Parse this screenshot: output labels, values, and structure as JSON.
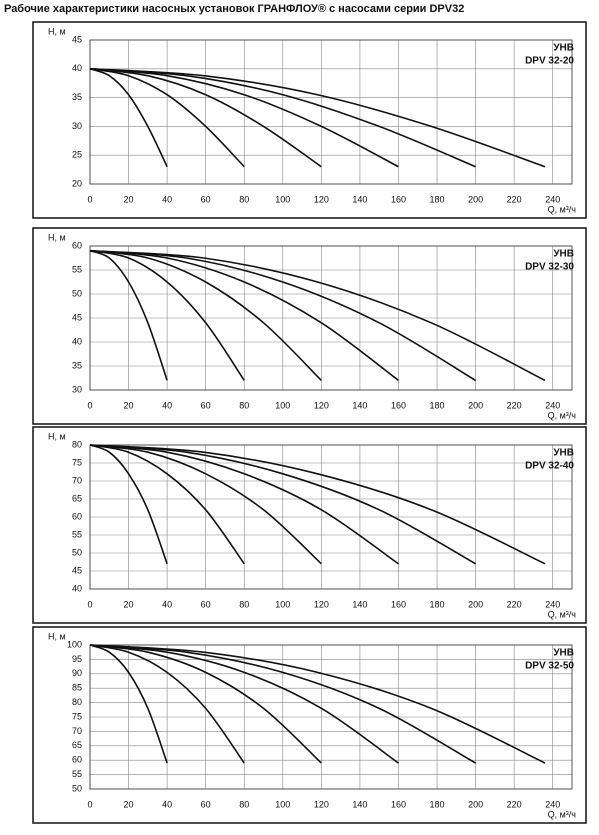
{
  "title": "Рабочие характеристики насосных установок  ГРАНФЛОУ® с насосами серии DPV32",
  "chart_data": [
    {
      "type": "line",
      "labels": [
        "УНВ",
        "DPV 32-20"
      ],
      "y_label": "Н, м",
      "x_label": "Q, м³/ч",
      "xlim": [
        0,
        250
      ],
      "xticks": [
        0,
        20,
        40,
        60,
        80,
        100,
        120,
        140,
        160,
        180,
        200,
        220,
        240
      ],
      "ylim": [
        20,
        45
      ],
      "yticks": [
        20,
        25,
        30,
        35,
        40,
        45
      ],
      "grid": true,
      "series": [
        {
          "color": "#111111",
          "x": [
            0,
            10,
            20,
            30,
            40
          ],
          "values": [
            40,
            38.8,
            35.5,
            30,
            23
          ]
        },
        {
          "color": "#111111",
          "x": [
            0,
            20,
            40,
            60,
            80
          ],
          "values": [
            40,
            38.8,
            35.5,
            30,
            23
          ]
        },
        {
          "color": "#111111",
          "x": [
            0,
            30,
            60,
            90,
            120
          ],
          "values": [
            40,
            38.8,
            35.5,
            30,
            23
          ]
        },
        {
          "color": "#111111",
          "x": [
            0,
            40,
            80,
            120,
            160
          ],
          "values": [
            40,
            38.8,
            35.5,
            30,
            23
          ]
        },
        {
          "color": "#111111",
          "x": [
            0,
            50,
            100,
            150,
            200
          ],
          "values": [
            40,
            38.8,
            35.5,
            30,
            23
          ]
        },
        {
          "color": "#111111",
          "x": [
            0,
            59,
            118,
            177,
            236
          ],
          "values": [
            40,
            38.8,
            35.5,
            30,
            23
          ]
        }
      ]
    },
    {
      "type": "line",
      "labels": [
        "УНВ",
        "DPV 32-30"
      ],
      "y_label": "Н, м",
      "x_label": "Q, м³/ч",
      "xlim": [
        0,
        250
      ],
      "xticks": [
        0,
        20,
        40,
        60,
        80,
        100,
        120,
        140,
        160,
        180,
        200,
        220,
        240
      ],
      "ylim": [
        30,
        60
      ],
      "yticks": [
        30,
        35,
        40,
        45,
        50,
        55,
        60
      ],
      "grid": true,
      "series": [
        {
          "color": "#111111",
          "x": [
            0,
            10,
            20,
            30,
            40
          ],
          "values": [
            59,
            57.5,
            52.5,
            44,
            32
          ]
        },
        {
          "color": "#111111",
          "x": [
            0,
            20,
            40,
            60,
            80
          ],
          "values": [
            59,
            57.5,
            52.5,
            44,
            32
          ]
        },
        {
          "color": "#111111",
          "x": [
            0,
            30,
            60,
            90,
            120
          ],
          "values": [
            59,
            57.5,
            52.5,
            44,
            32
          ]
        },
        {
          "color": "#111111",
          "x": [
            0,
            40,
            80,
            120,
            160
          ],
          "values": [
            59,
            57.5,
            52.5,
            44,
            32
          ]
        },
        {
          "color": "#111111",
          "x": [
            0,
            50,
            100,
            150,
            200
          ],
          "values": [
            59,
            57.5,
            52.5,
            44,
            32
          ]
        },
        {
          "color": "#111111",
          "x": [
            0,
            59,
            118,
            177,
            236
          ],
          "values": [
            59,
            57.5,
            52.5,
            44,
            32
          ]
        }
      ]
    },
    {
      "type": "line",
      "labels": [
        "УНВ",
        "DPV 32-40"
      ],
      "y_label": "Н, м",
      "x_label": "Q, м³/ч",
      "xlim": [
        0,
        250
      ],
      "xticks": [
        0,
        20,
        40,
        60,
        80,
        100,
        120,
        140,
        160,
        180,
        200,
        220,
        240
      ],
      "ylim": [
        40,
        80
      ],
      "yticks": [
        40,
        45,
        50,
        55,
        60,
        65,
        70,
        75,
        80
      ],
      "grid": true,
      "series": [
        {
          "color": "#111111",
          "x": [
            0,
            10,
            20,
            30,
            40
          ],
          "values": [
            80,
            78,
            72,
            62,
            47
          ]
        },
        {
          "color": "#111111",
          "x": [
            0,
            20,
            40,
            60,
            80
          ],
          "values": [
            80,
            78,
            72,
            62,
            47
          ]
        },
        {
          "color": "#111111",
          "x": [
            0,
            30,
            60,
            90,
            120
          ],
          "values": [
            80,
            78,
            72,
            62,
            47
          ]
        },
        {
          "color": "#111111",
          "x": [
            0,
            40,
            80,
            120,
            160
          ],
          "values": [
            80,
            78,
            72,
            62,
            47
          ]
        },
        {
          "color": "#111111",
          "x": [
            0,
            50,
            100,
            150,
            200
          ],
          "values": [
            80,
            78,
            72,
            62,
            47
          ]
        },
        {
          "color": "#111111",
          "x": [
            0,
            59,
            118,
            177,
            236
          ],
          "values": [
            80,
            78,
            72,
            62,
            47
          ]
        }
      ]
    },
    {
      "type": "line",
      "labels": [
        "УНВ",
        "DPV 32-50"
      ],
      "y_label": "Н, м",
      "x_label": "Q, м³/ч",
      "xlim": [
        0,
        250
      ],
      "xticks": [
        0,
        20,
        40,
        60,
        80,
        100,
        120,
        140,
        160,
        180,
        200,
        220,
        240
      ],
      "ylim": [
        50,
        100
      ],
      "yticks": [
        50,
        55,
        60,
        65,
        70,
        75,
        80,
        85,
        90,
        95,
        100
      ],
      "grid": true,
      "series": [
        {
          "color": "#111111",
          "x": [
            0,
            10,
            20,
            30,
            40
          ],
          "values": [
            100,
            97.5,
            90.5,
            78,
            59
          ]
        },
        {
          "color": "#111111",
          "x": [
            0,
            20,
            40,
            60,
            80
          ],
          "values": [
            100,
            97.5,
            90.5,
            78,
            59
          ]
        },
        {
          "color": "#111111",
          "x": [
            0,
            30,
            60,
            90,
            120
          ],
          "values": [
            100,
            97.5,
            90.5,
            78,
            59
          ]
        },
        {
          "color": "#111111",
          "x": [
            0,
            40,
            80,
            120,
            160
          ],
          "values": [
            100,
            97.5,
            90.5,
            78,
            59
          ]
        },
        {
          "color": "#111111",
          "x": [
            0,
            50,
            100,
            150,
            200
          ],
          "values": [
            100,
            97.5,
            90.5,
            78,
            59
          ]
        },
        {
          "color": "#111111",
          "x": [
            0,
            59,
            118,
            177,
            236
          ],
          "values": [
            100,
            97.5,
            90.5,
            78,
            59
          ]
        }
      ]
    }
  ]
}
